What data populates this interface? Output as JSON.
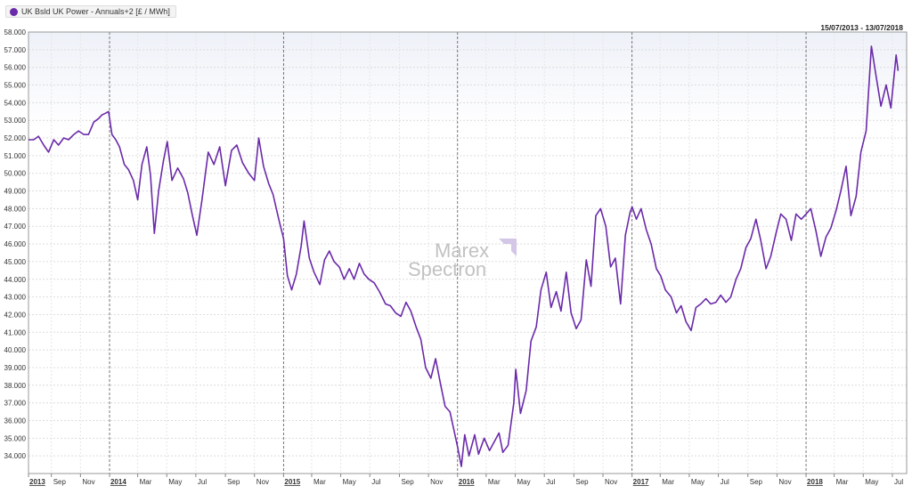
{
  "legend": {
    "label": "UK Bsld UK Power - Annuals+2 [£ / MWh]",
    "color": "#6a2aa9"
  },
  "header": {
    "date_range": "15/07/2013 - 13/07/2018"
  },
  "watermark": {
    "line1": "Marex",
    "line2": "Spectron",
    "icon": "marex-arrow-icon"
  },
  "chart_data": {
    "type": "line",
    "title": "",
    "xlabel": "",
    "ylabel": "",
    "ylim": [
      33.0,
      58.0
    ],
    "yticks": [
      "34.000",
      "35.000",
      "36.000",
      "37.000",
      "38.000",
      "39.000",
      "40.000",
      "41.000",
      "42.000",
      "43.000",
      "44.000",
      "45.000",
      "46.000",
      "47.000",
      "48.000",
      "49.000",
      "50.000",
      "51.000",
      "52.000",
      "53.000",
      "54.000",
      "55.000",
      "56.000",
      "57.000",
      "58.000"
    ],
    "xlim": [
      "2013-07-15",
      "2018-07-31"
    ],
    "grid": true,
    "legend_position": "top-left",
    "year_lines": [
      "2014-01-01",
      "2015-01-01",
      "2016-01-01",
      "2017-01-01",
      "2018-01-01"
    ],
    "xticks": [
      {
        "date": "2013-07-01",
        "label": "2013",
        "major": true
      },
      {
        "date": "2013-09-01",
        "label": "Sep"
      },
      {
        "date": "2013-11-01",
        "label": "Nov"
      },
      {
        "date": "2014-01-01",
        "label": "2014",
        "major": true
      },
      {
        "date": "2014-03-01",
        "label": "Mar"
      },
      {
        "date": "2014-05-01",
        "label": "May"
      },
      {
        "date": "2014-07-01",
        "label": "Jul"
      },
      {
        "date": "2014-09-01",
        "label": "Sep"
      },
      {
        "date": "2014-11-01",
        "label": "Nov"
      },
      {
        "date": "2015-01-01",
        "label": "2015",
        "major": true
      },
      {
        "date": "2015-03-01",
        "label": "Mar"
      },
      {
        "date": "2015-05-01",
        "label": "May"
      },
      {
        "date": "2015-07-01",
        "label": "Jul"
      },
      {
        "date": "2015-09-01",
        "label": "Sep"
      },
      {
        "date": "2015-11-01",
        "label": "Nov"
      },
      {
        "date": "2016-01-01",
        "label": "2016",
        "major": true
      },
      {
        "date": "2016-03-01",
        "label": "Mar"
      },
      {
        "date": "2016-05-01",
        "label": "May"
      },
      {
        "date": "2016-07-01",
        "label": "Jul"
      },
      {
        "date": "2016-09-01",
        "label": "Sep"
      },
      {
        "date": "2016-11-01",
        "label": "Nov"
      },
      {
        "date": "2017-01-01",
        "label": "2017",
        "major": true
      },
      {
        "date": "2017-03-01",
        "label": "Mar"
      },
      {
        "date": "2017-05-01",
        "label": "May"
      },
      {
        "date": "2017-07-01",
        "label": "Jul"
      },
      {
        "date": "2017-09-01",
        "label": "Sep"
      },
      {
        "date": "2017-11-01",
        "label": "Nov"
      },
      {
        "date": "2018-01-01",
        "label": "2018",
        "major": true
      },
      {
        "date": "2018-03-01",
        "label": "Mar"
      },
      {
        "date": "2018-05-01",
        "label": "May"
      },
      {
        "date": "2018-07-01",
        "label": "Jul"
      }
    ],
    "series": [
      {
        "name": "UK Bsld UK Power - Annuals+2 [£ / MWh]",
        "color": "#6a2aa9",
        "points": [
          [
            "2013-07-15",
            51.9
          ],
          [
            "2013-07-26",
            51.9
          ],
          [
            "2013-08-05",
            52.1
          ],
          [
            "2013-08-16",
            51.6
          ],
          [
            "2013-08-26",
            51.2
          ],
          [
            "2013-09-06",
            51.9
          ],
          [
            "2013-09-16",
            51.6
          ],
          [
            "2013-09-27",
            52.0
          ],
          [
            "2013-10-07",
            51.9
          ],
          [
            "2013-10-18",
            52.2
          ],
          [
            "2013-10-28",
            52.4
          ],
          [
            "2013-11-08",
            52.2
          ],
          [
            "2013-11-18",
            52.2
          ],
          [
            "2013-11-29",
            52.9
          ],
          [
            "2013-12-09",
            53.1
          ],
          [
            "2013-12-16",
            53.3
          ],
          [
            "2013-12-23",
            53.4
          ],
          [
            "2013-12-30",
            53.5
          ],
          [
            "2014-01-06",
            52.2
          ],
          [
            "2014-01-14",
            51.9
          ],
          [
            "2014-01-22",
            51.5
          ],
          [
            "2014-02-01",
            50.5
          ],
          [
            "2014-02-10",
            50.2
          ],
          [
            "2014-02-20",
            49.6
          ],
          [
            "2014-03-01",
            48.5
          ],
          [
            "2014-03-10",
            50.5
          ],
          [
            "2014-03-20",
            51.5
          ],
          [
            "2014-03-28",
            49.9
          ],
          [
            "2014-04-05",
            46.6
          ],
          [
            "2014-04-14",
            49.0
          ],
          [
            "2014-04-24",
            50.7
          ],
          [
            "2014-05-02",
            51.8
          ],
          [
            "2014-05-12",
            49.6
          ],
          [
            "2014-05-24",
            50.3
          ],
          [
            "2014-06-05",
            49.7
          ],
          [
            "2014-06-14",
            48.9
          ],
          [
            "2014-06-24",
            47.6
          ],
          [
            "2014-07-03",
            46.5
          ],
          [
            "2014-07-14",
            48.5
          ],
          [
            "2014-07-27",
            51.2
          ],
          [
            "2014-08-08",
            50.5
          ],
          [
            "2014-08-20",
            51.5
          ],
          [
            "2014-09-01",
            49.3
          ],
          [
            "2014-09-14",
            51.3
          ],
          [
            "2014-09-25",
            51.6
          ],
          [
            "2014-10-07",
            50.6
          ],
          [
            "2014-10-20",
            50.0
          ],
          [
            "2014-11-01",
            49.6
          ],
          [
            "2014-11-10",
            52.0
          ],
          [
            "2014-11-20",
            50.4
          ],
          [
            "2014-12-01",
            49.4
          ],
          [
            "2014-12-10",
            48.8
          ],
          [
            "2014-12-22",
            47.4
          ],
          [
            "2015-01-01",
            46.3
          ],
          [
            "2015-01-09",
            44.2
          ],
          [
            "2015-01-18",
            43.4
          ],
          [
            "2015-01-28",
            44.3
          ],
          [
            "2015-02-07",
            45.9
          ],
          [
            "2015-02-13",
            47.3
          ],
          [
            "2015-02-24",
            45.2
          ],
          [
            "2015-03-06",
            44.4
          ],
          [
            "2015-03-18",
            43.7
          ],
          [
            "2015-03-28",
            45.1
          ],
          [
            "2015-04-07",
            45.6
          ],
          [
            "2015-04-17",
            45.0
          ],
          [
            "2015-04-28",
            44.7
          ],
          [
            "2015-05-08",
            44.0
          ],
          [
            "2015-05-19",
            44.6
          ],
          [
            "2015-05-29",
            44.0
          ],
          [
            "2015-06-09",
            44.9
          ],
          [
            "2015-06-19",
            44.3
          ],
          [
            "2015-06-29",
            44.0
          ],
          [
            "2015-07-10",
            43.8
          ],
          [
            "2015-07-21",
            43.3
          ],
          [
            "2015-08-03",
            42.6
          ],
          [
            "2015-08-13",
            42.5
          ],
          [
            "2015-08-24",
            42.1
          ],
          [
            "2015-09-04",
            41.9
          ],
          [
            "2015-09-15",
            42.7
          ],
          [
            "2015-09-25",
            42.2
          ],
          [
            "2015-10-06",
            41.3
          ],
          [
            "2015-10-16",
            40.6
          ],
          [
            "2015-10-26",
            39.0
          ],
          [
            "2015-11-06",
            38.4
          ],
          [
            "2015-11-16",
            39.5
          ],
          [
            "2015-11-26",
            38.1
          ],
          [
            "2015-12-06",
            36.8
          ],
          [
            "2015-12-16",
            36.5
          ],
          [
            "2016-01-01",
            34.5
          ],
          [
            "2016-01-09",
            33.4
          ],
          [
            "2016-01-16",
            35.2
          ],
          [
            "2016-01-25",
            34.0
          ],
          [
            "2016-02-06",
            35.2
          ],
          [
            "2016-02-14",
            34.1
          ],
          [
            "2016-02-26",
            35.0
          ],
          [
            "2016-03-08",
            34.3
          ],
          [
            "2016-03-18",
            34.8
          ],
          [
            "2016-03-28",
            35.3
          ],
          [
            "2016-04-05",
            34.2
          ],
          [
            "2016-04-16",
            34.6
          ],
          [
            "2016-04-28",
            37.0
          ],
          [
            "2016-05-02",
            38.9
          ],
          [
            "2016-05-12",
            36.4
          ],
          [
            "2016-05-24",
            37.7
          ],
          [
            "2016-06-03",
            40.5
          ],
          [
            "2016-06-14",
            41.3
          ],
          [
            "2016-06-24",
            43.4
          ],
          [
            "2016-07-05",
            44.4
          ],
          [
            "2016-07-15",
            42.4
          ],
          [
            "2016-07-26",
            43.3
          ],
          [
            "2016-08-05",
            42.2
          ],
          [
            "2016-08-16",
            44.4
          ],
          [
            "2016-08-26",
            42.1
          ],
          [
            "2016-09-06",
            41.2
          ],
          [
            "2016-09-16",
            41.7
          ],
          [
            "2016-09-27",
            45.1
          ],
          [
            "2016-10-07",
            43.6
          ],
          [
            "2016-10-17",
            47.6
          ],
          [
            "2016-10-27",
            48.0
          ],
          [
            "2016-11-07",
            47.0
          ],
          [
            "2016-11-17",
            44.7
          ],
          [
            "2016-11-27",
            45.2
          ],
          [
            "2016-12-08",
            42.6
          ],
          [
            "2016-12-18",
            46.5
          ],
          [
            "2016-12-28",
            47.8
          ],
          [
            "2017-01-01",
            48.1
          ],
          [
            "2017-01-10",
            47.4
          ],
          [
            "2017-01-20",
            48.0
          ],
          [
            "2017-01-31",
            46.8
          ],
          [
            "2017-02-10",
            46.0
          ],
          [
            "2017-02-21",
            44.6
          ],
          [
            "2017-03-02",
            44.2
          ],
          [
            "2017-03-12",
            43.4
          ],
          [
            "2017-03-24",
            43.0
          ],
          [
            "2017-04-04",
            42.1
          ],
          [
            "2017-04-14",
            42.5
          ],
          [
            "2017-04-24",
            41.6
          ],
          [
            "2017-05-05",
            41.1
          ],
          [
            "2017-05-15",
            42.4
          ],
          [
            "2017-05-25",
            42.6
          ],
          [
            "2017-06-05",
            42.9
          ],
          [
            "2017-06-15",
            42.6
          ],
          [
            "2017-06-26",
            42.7
          ],
          [
            "2017-07-06",
            43.1
          ],
          [
            "2017-07-17",
            42.7
          ],
          [
            "2017-07-27",
            43.0
          ],
          [
            "2017-08-07",
            44.0
          ],
          [
            "2017-08-17",
            44.6
          ],
          [
            "2017-08-28",
            45.8
          ],
          [
            "2017-09-07",
            46.3
          ],
          [
            "2017-09-18",
            47.4
          ],
          [
            "2017-09-28",
            46.2
          ],
          [
            "2017-10-09",
            44.6
          ],
          [
            "2017-10-19",
            45.3
          ],
          [
            "2017-10-30",
            46.6
          ],
          [
            "2017-11-09",
            47.7
          ],
          [
            "2017-11-20",
            47.4
          ],
          [
            "2017-12-01",
            46.2
          ],
          [
            "2017-12-11",
            47.7
          ],
          [
            "2017-12-22",
            47.4
          ],
          [
            "2018-01-01",
            47.7
          ],
          [
            "2018-01-11",
            48.0
          ],
          [
            "2018-01-22",
            46.7
          ],
          [
            "2018-02-01",
            45.3
          ],
          [
            "2018-02-12",
            46.4
          ],
          [
            "2018-02-22",
            46.9
          ],
          [
            "2018-03-05",
            47.9
          ],
          [
            "2018-03-15",
            49.0
          ],
          [
            "2018-03-26",
            50.4
          ],
          [
            "2018-04-05",
            47.6
          ],
          [
            "2018-04-16",
            48.7
          ],
          [
            "2018-04-26",
            51.2
          ],
          [
            "2018-05-07",
            52.4
          ],
          [
            "2018-05-18",
            57.2
          ],
          [
            "2018-05-28",
            55.5
          ],
          [
            "2018-06-07",
            53.8
          ],
          [
            "2018-06-18",
            55.0
          ],
          [
            "2018-06-28",
            53.7
          ],
          [
            "2018-07-09",
            56.7
          ],
          [
            "2018-07-13",
            55.8
          ]
        ]
      }
    ]
  }
}
